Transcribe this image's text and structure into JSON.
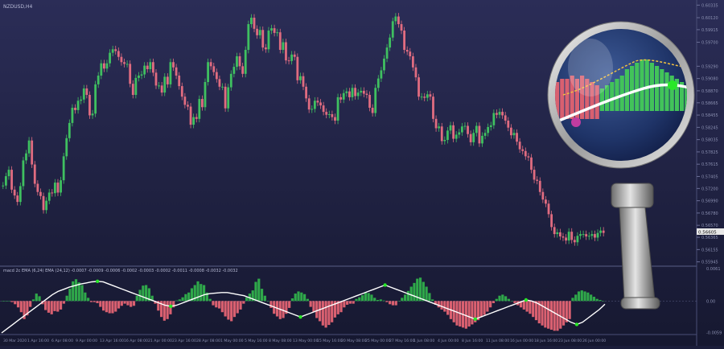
{
  "window": {
    "symbol_label": "NZDUSD,H4",
    "indicator_label": "macd 2c EMA (6,24) EMA (24,12) -0.0007 -0.0009 -0.0006 -0.0002 -0.0003 -0.0002 -0.0011 -0.0008 -0.0032 -0.0032"
  },
  "colors": {
    "background_top": "#2a2c55",
    "background_bottom": "#161830",
    "bull_candle": "#3fc060",
    "bear_candle": "#e06c80",
    "hist_positive": "#2fa84a",
    "hist_negative": "#d96070",
    "signal_line": "#ffffff",
    "marker": "#29e829",
    "grid_text": "#8a8fb0"
  },
  "chart_data": [
    {
      "type": "candlestick",
      "title": "NZDUSD,H4",
      "y_ticks": [
        "0.60335",
        "0.60120",
        "0.59915",
        "0.59700",
        "0.59290",
        "0.59080",
        "0.58870",
        "0.58665",
        "0.58455",
        "0.58245",
        "0.58035",
        "0.57825",
        "0.57615",
        "0.57405",
        "0.57200",
        "0.56990",
        "0.56780",
        "0.56570",
        "0.56365",
        "0.56155",
        "0.55945"
      ],
      "current_price": "0.56605",
      "ylim": [
        0.5594,
        0.6034
      ],
      "series": [
        {
          "name": "price",
          "values": [
            0.5725,
            0.5741,
            0.5752,
            0.5718,
            0.5708,
            0.5697,
            0.5724,
            0.5768,
            0.578,
            0.5802,
            0.5761,
            0.5728,
            0.5714,
            0.5707,
            0.5683,
            0.5699,
            0.5713,
            0.5712,
            0.573,
            0.5713,
            0.5734,
            0.5775,
            0.5806,
            0.5832,
            0.5858,
            0.5854,
            0.587,
            0.5872,
            0.5891,
            0.588,
            0.5845,
            0.5848,
            0.5898,
            0.5913,
            0.5934,
            0.5925,
            0.5934,
            0.5952,
            0.5958,
            0.5955,
            0.5945,
            0.5936,
            0.5933,
            0.5933,
            0.5899,
            0.588,
            0.5909,
            0.5913,
            0.5915,
            0.593,
            0.5924,
            0.5936,
            0.5918,
            0.5896,
            0.5896,
            0.5884,
            0.5911,
            0.5898,
            0.5936,
            0.5927,
            0.5913,
            0.5895,
            0.5877,
            0.5863,
            0.586,
            0.5829,
            0.5842,
            0.5839,
            0.5873,
            0.5859,
            0.5902,
            0.5936,
            0.5929,
            0.5919,
            0.5907,
            0.5894,
            0.5894,
            0.5857,
            0.5893,
            0.5916,
            0.5928,
            0.5946,
            0.5929,
            0.5916,
            0.5957,
            0.6001,
            0.6012,
            0.5993,
            0.5982,
            0.5991,
            0.5961,
            0.5958,
            0.599,
            0.5994,
            0.5986,
            0.5987,
            0.5957,
            0.597,
            0.5939,
            0.5938,
            0.5949,
            0.5945,
            0.5905,
            0.5912,
            0.5894,
            0.5874,
            0.5855,
            0.5856,
            0.587,
            0.5867,
            0.5862,
            0.5851,
            0.5846,
            0.5847,
            0.5842,
            0.5836,
            0.5876,
            0.5872,
            0.5883,
            0.5886,
            0.5876,
            0.5892,
            0.5878,
            0.5884,
            0.5887,
            0.5882,
            0.588,
            0.5858,
            0.5849,
            0.5892,
            0.5908,
            0.5922,
            0.5942,
            0.5961,
            0.5978,
            0.6006,
            0.6014,
            0.6001,
            0.599,
            0.5957,
            0.5954,
            0.5946,
            0.5927,
            0.591,
            0.5877,
            0.5877,
            0.5875,
            0.5881,
            0.5877,
            0.5839,
            0.5823,
            0.5826,
            0.5801,
            0.5803,
            0.5819,
            0.5828,
            0.5805,
            0.5812,
            0.5816,
            0.5826,
            0.5827,
            0.5813,
            0.5799,
            0.5815,
            0.5827,
            0.5797,
            0.581,
            0.5815,
            0.5825,
            0.5828,
            0.5849,
            0.5846,
            0.5851,
            0.5845,
            0.5836,
            0.5824,
            0.5811,
            0.5815,
            0.58,
            0.5787,
            0.5784,
            0.5775,
            0.5773,
            0.5752,
            0.5735,
            0.5733,
            0.5714,
            0.5701,
            0.5694,
            0.5676,
            0.5654,
            0.5642,
            0.5645,
            0.5638,
            0.5636,
            0.5631,
            0.5646,
            0.5632,
            0.5628,
            0.5639,
            0.5642,
            0.5642,
            0.5638,
            0.5639,
            0.5642,
            0.5636,
            0.5644,
            0.5648,
            0.5644
          ]
        }
      ]
    },
    {
      "type": "bar",
      "title": "macd 2c EMA (6,24) EMA (24,12)",
      "y_ticks": [
        "0.0061",
        "0.00",
        "-0.0059"
      ],
      "ylim": [
        -0.006,
        0.0061
      ],
      "series": [
        {
          "name": "histogram",
          "values": [
            -0.0,
            -0.0,
            -0.0,
            -0.0002,
            -0.0006,
            -0.0012,
            -0.0021,
            -0.0034,
            -0.0027,
            -0.0011,
            0.0003,
            0.0014,
            0.0009,
            -0.0006,
            -0.0017,
            -0.0022,
            -0.0025,
            -0.0019,
            -0.002,
            -0.0016,
            -0.0005,
            0.001,
            0.0023,
            0.0037,
            0.0041,
            0.0035,
            0.003,
            0.0016,
            0.0006,
            -0.0002,
            -0.0002,
            -0.0004,
            -0.0011,
            -0.0018,
            -0.0021,
            -0.0023,
            -0.0023,
            -0.002,
            -0.0014,
            -0.0009,
            -0.0005,
            -0.0008,
            -0.0011,
            -0.0009,
            0.001,
            0.0021,
            0.0029,
            0.003,
            0.0024,
            0.001,
            -0.0005,
            -0.0018,
            -0.003,
            -0.0037,
            -0.0034,
            -0.0025,
            -0.0012,
            0.0001,
            0.0003,
            0.0007,
            0.0013,
            0.0016,
            0.0024,
            0.003,
            0.0037,
            0.0032,
            0.003,
            0.0016,
            0.0004,
            -0.0008,
            -0.0012,
            -0.0014,
            -0.0021,
            -0.0029,
            -0.0035,
            -0.0038,
            -0.003,
            -0.0023,
            -0.0016,
            -0.0005,
            0.0007,
            0.0014,
            0.002,
            0.0036,
            0.0042,
            0.0023,
            0.001,
            0.0,
            -0.0013,
            -0.0024,
            -0.0029,
            -0.0034,
            -0.0032,
            -0.0024,
            -0.0013,
            0.0005,
            0.0014,
            0.0018,
            0.0016,
            0.0013,
            0.0004,
            -0.0011,
            -0.0021,
            -0.0032,
            -0.0038,
            -0.0046,
            -0.005,
            -0.0045,
            -0.004,
            -0.0031,
            -0.0025,
            -0.0021,
            -0.0012,
            -0.0007,
            -0.0005,
            -0.0005,
            0.0004,
            0.0007,
            0.0011,
            0.0016,
            0.0015,
            0.0012,
            0.0006,
            0.0002,
            0.0003,
            0.0001,
            -0.0002,
            -0.0006,
            -0.0008,
            -0.0008,
            0.0,
            0.0006,
            0.0012,
            0.0019,
            0.0027,
            0.0034,
            0.0042,
            0.0044,
            0.0036,
            0.0027,
            0.0015,
            0.0003,
            -0.0007,
            -0.0012,
            -0.0016,
            -0.002,
            -0.0026,
            -0.0034,
            -0.004,
            -0.0046,
            -0.0048,
            -0.005,
            -0.0052,
            -0.0048,
            -0.0044,
            -0.004,
            -0.0036,
            -0.003,
            -0.0026,
            -0.002,
            -0.0012,
            -0.0004,
            0.0004,
            0.001,
            0.0012,
            0.0009,
            0.0004,
            0.0,
            -0.0004,
            -0.0008,
            -0.0012,
            -0.0016,
            -0.002,
            -0.0024,
            -0.003,
            -0.0036,
            -0.0042,
            -0.0046,
            -0.005,
            -0.0052,
            -0.0054,
            -0.0056,
            -0.0056,
            -0.0052,
            -0.0046,
            -0.004,
            -0.0034,
            0.0006,
            0.0012,
            0.0018,
            0.002,
            0.0018,
            0.0016,
            0.0012,
            0.0008,
            0.0004,
            0.0002,
            0.0
          ]
        },
        {
          "name": "signal",
          "values": [
            -0.006,
            -0.0052,
            -0.0044,
            -0.0036,
            -0.0028,
            -0.002,
            -0.0012,
            -0.0004,
            0.0004,
            0.0012,
            0.0018,
            0.0022,
            0.0026,
            0.0029,
            0.0032,
            0.0034,
            0.0036,
            0.0037,
            0.0036,
            0.0032,
            0.0028,
            0.0024,
            0.002,
            0.0016,
            0.0012,
            0.0008,
            0.0004,
            0.0,
            -0.0004,
            -0.0008,
            -0.001,
            -0.0008,
            -0.0004,
            0.0,
            0.0004,
            0.0008,
            0.0012,
            0.0014,
            0.0015,
            0.0016,
            0.0016,
            0.0014,
            0.0012,
            0.001,
            0.0006,
            0.0002,
            -0.0002,
            -0.0006,
            -0.001,
            -0.0014,
            -0.0018,
            -0.0022,
            -0.0026,
            -0.003,
            -0.0026,
            -0.0022,
            -0.0018,
            -0.0014,
            -0.001,
            -0.0006,
            -0.0002,
            0.0002,
            0.0006,
            0.001,
            0.0014,
            0.0018,
            0.0022,
            0.0026,
            0.003,
            0.0026,
            0.0022,
            0.0018,
            0.0014,
            0.001,
            0.0006,
            0.0002,
            -0.0002,
            -0.0006,
            -0.001,
            -0.0014,
            -0.0018,
            -0.0022,
            -0.0026,
            -0.003,
            -0.0034,
            -0.003,
            -0.0026,
            -0.0022,
            -0.0018,
            -0.0014,
            -0.001,
            -0.0006,
            -0.0002,
            0.0002,
            0.0,
            -0.0004,
            -0.001,
            -0.0016,
            -0.0022,
            -0.0028,
            -0.0034,
            -0.004,
            -0.0044,
            -0.004,
            -0.0032,
            -0.0024,
            -0.0016,
            -0.0006
          ]
        }
      ],
      "markers": "crossover points highlighted with green dots"
    }
  ],
  "x_axis": {
    "labels": [
      "30 Mar 2020",
      "1 Apr 16:00",
      "6 Apr 08:00",
      "9 Apr 00:00",
      "13 Apr 16:00",
      "16 Apr 08:00",
      "21 Apr 00:00",
      "23 Apr 16:00",
      "28 Apr 08:00",
      "1 May 00:00",
      "5 May 16:00",
      "8 May 08:00",
      "13 May 00:00",
      "15 May 16:00",
      "20 May 08:00",
      "25 May 00:00",
      "27 May 16:00",
      "1 Jun 08:00",
      "4 Jun 00:00",
      "8 Jun 16:00",
      "11 Jun 08:00",
      "16 Jun 00:00",
      "18 Jun 16:00",
      "23 Jun 08:00",
      "26 Jun 00:00"
    ]
  },
  "magnifier": {
    "icon": "magnifying-glass-icon"
  }
}
